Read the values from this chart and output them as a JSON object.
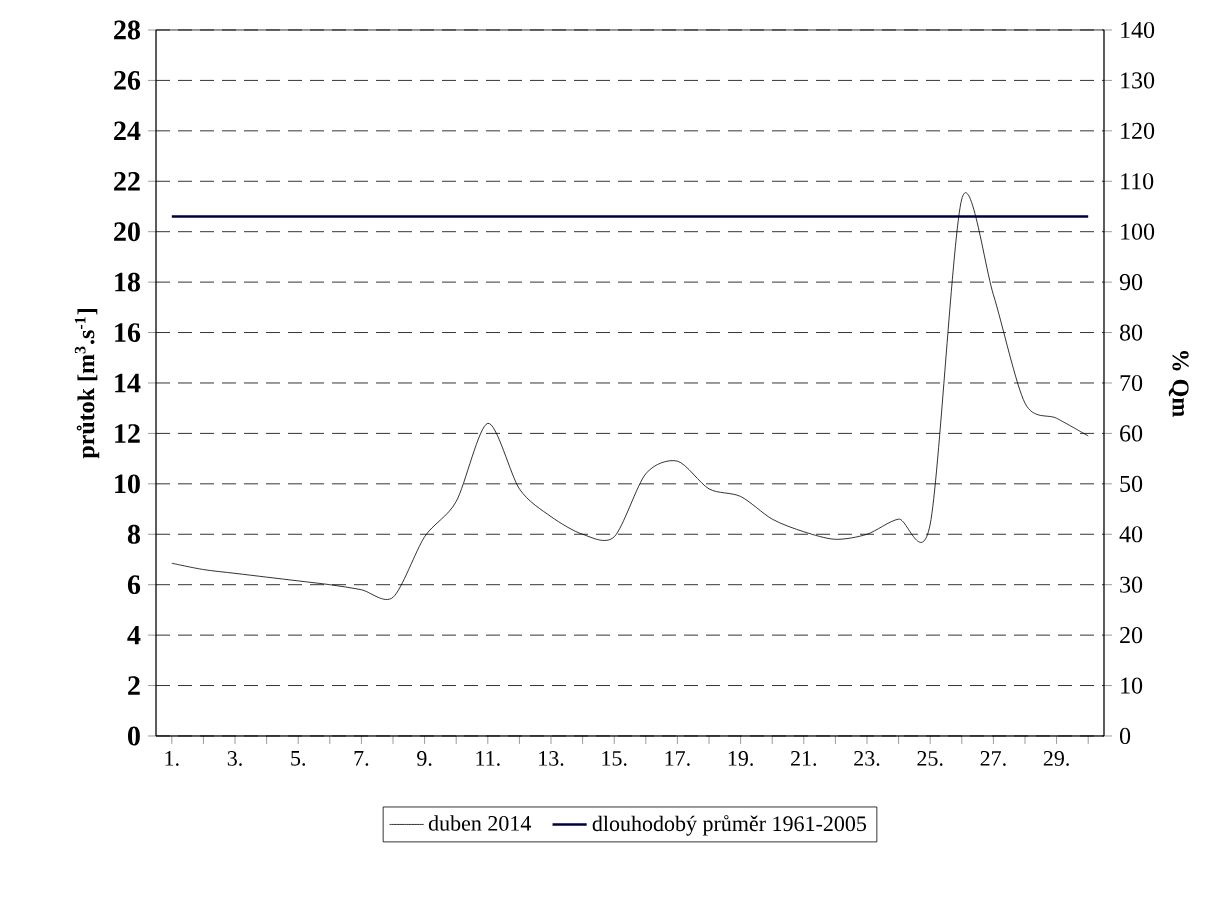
{
  "chart_data": {
    "type": "line",
    "ylabel": "průtok [m$^{3}$.s$^{-1}$]",
    "y2label": "% Qm",
    "categories": [
      "1.",
      null,
      "3.",
      null,
      "5.",
      null,
      "7.",
      null,
      "9.",
      null,
      "11.",
      null,
      "13.",
      null,
      "15.",
      null,
      "17.",
      null,
      "19.",
      null,
      "21.",
      null,
      "23.",
      null,
      "25.",
      null,
      "27.",
      null,
      "29.",
      null
    ],
    "series": [
      {
        "name": "duben  2014",
        "color": "#000000",
        "values": [
          6.85,
          6.6,
          6.45,
          6.3,
          6.15,
          6.0,
          5.8,
          5.5,
          7.9,
          9.3,
          12.4,
          9.8,
          8.7,
          8.0,
          7.9,
          10.4,
          10.9,
          9.8,
          9.5,
          8.6,
          8.1,
          7.8,
          8.0,
          8.6,
          8.4,
          21.3,
          17.5,
          13.2,
          12.6,
          11.9
        ]
      },
      {
        "name": "dlouhodobý  průměr 1961-2005",
        "color": "#00003c",
        "values": [
          20.6,
          20.6,
          20.6,
          20.6,
          20.6,
          20.6,
          20.6,
          20.6,
          20.6,
          20.6,
          20.6,
          20.6,
          20.6,
          20.6,
          20.6,
          20.6,
          20.6,
          20.6,
          20.6,
          20.6,
          20.6,
          20.6,
          20.6,
          20.6,
          20.6,
          20.6,
          20.6,
          20.6,
          20.6,
          20.6
        ]
      }
    ],
    "ylim": [
      0,
      28
    ],
    "yticks": [
      0,
      2,
      4,
      6,
      8,
      10,
      12,
      14,
      16,
      18,
      20,
      22,
      24,
      26,
      28
    ],
    "y2lim": [
      0,
      140
    ],
    "y2ticks": [
      0,
      10,
      20,
      30,
      40,
      50,
      60,
      70,
      80,
      90,
      100,
      110,
      120,
      130,
      140
    ],
    "grid": "y",
    "legend": "bottom",
    "line_style": "solid",
    "marker": "none"
  }
}
